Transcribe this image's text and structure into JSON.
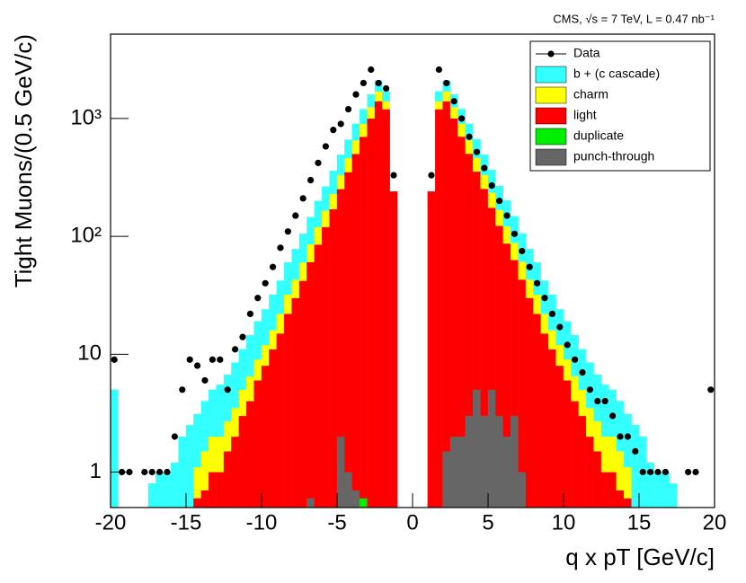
{
  "chart_data": {
    "type": "stacked-histogram",
    "annotation": "CMS,  √s = 7 TeV,  L = 0.47 nb⁻¹",
    "x_label": "q x pT [GeV/c]",
    "y_label": "Tight Muons/(0.5 GeV/c)",
    "log_y": true,
    "legend_position": "top-right",
    "xlim": [
      -20,
      20
    ],
    "ylim": [
      0.5,
      5200
    ],
    "xticks": [
      -20,
      -15,
      -10,
      -5,
      0,
      5,
      10,
      15,
      20
    ],
    "yticks": [
      1,
      10,
      {
        "value": 100,
        "label": "10²"
      },
      {
        "value": 1000,
        "label": "10³"
      }
    ],
    "bins": [
      -20,
      -19.5,
      -19,
      -18.5,
      -18,
      -17.5,
      -17,
      -16.5,
      -16,
      -15.5,
      -15,
      -14.5,
      -14,
      -13.5,
      -13,
      -12.5,
      -12,
      -11.5,
      -11,
      -10.5,
      -10,
      -9.5,
      -9,
      -8.5,
      -8,
      -7.5,
      -7,
      -6.5,
      -6,
      -5.5,
      -5,
      -4.5,
      -4,
      -3.5,
      -3,
      -2.5,
      -2,
      -1.5,
      -1,
      -0.5,
      0,
      0.5,
      1,
      1.5,
      2,
      2.5,
      3,
      3.5,
      4,
      4.5,
      5,
      5.5,
      6,
      6.5,
      7,
      7.5,
      8,
      8.5,
      9,
      9.5,
      10,
      10.5,
      11,
      11.5,
      12,
      12.5,
      13,
      13.5,
      14,
      14.5,
      15,
      15.5,
      16,
      16.5,
      17,
      17.5,
      18,
      18.5,
      19,
      19.5,
      20
    ],
    "data_points": {
      "name": "Data",
      "color": "#000000",
      "values": [
        9,
        1,
        1,
        null,
        1,
        1,
        1,
        1,
        2,
        5,
        9,
        8,
        6,
        9,
        9,
        5,
        11,
        14,
        22,
        30,
        40,
        55,
        80,
        110,
        150,
        210,
        300,
        420,
        580,
        800,
        900,
        1200,
        1600,
        2000,
        2600,
        2000,
        1800,
        330,
        null,
        null,
        null,
        null,
        330,
        2600,
        2000,
        1400,
        1000,
        700,
        520,
        380,
        270,
        200,
        150,
        105,
        75,
        55,
        40,
        30,
        22,
        17,
        12,
        9,
        7,
        5,
        4,
        4,
        3,
        2,
        2,
        1.5,
        1,
        1,
        1,
        1,
        null,
        null,
        1,
        1,
        null,
        5
      ]
    },
    "series": [
      {
        "name": "b + (c cascade)",
        "color": "#33ffff",
        "values": [
          5,
          0.5,
          0.5,
          0.5,
          0.5,
          0.8,
          1,
          1,
          1.2,
          1.5,
          2,
          2,
          2.5,
          3,
          3.5,
          4,
          5,
          6,
          8,
          10,
          12,
          16,
          20,
          28,
          35,
          45,
          60,
          80,
          100,
          130,
          160,
          200,
          250,
          300,
          350,
          400,
          300,
          0,
          0,
          0,
          0,
          0,
          0,
          300,
          400,
          350,
          300,
          250,
          200,
          160,
          130,
          100,
          80,
          60,
          45,
          35,
          28,
          20,
          16,
          12,
          10,
          8,
          6,
          5,
          4,
          3.5,
          3,
          2.5,
          2,
          2,
          1.5,
          1.2,
          1,
          1,
          0.8,
          0.5,
          0.5,
          0.5,
          0.5,
          0
        ]
      },
      {
        "name": "charm",
        "color": "#ffff00",
        "values": [
          0,
          0,
          0,
          0,
          0,
          0,
          0,
          0,
          0,
          0.5,
          0.5,
          0.5,
          0.8,
          1,
          1,
          1.2,
          1.5,
          2,
          2.5,
          3,
          4,
          5,
          7,
          10,
          13,
          18,
          25,
          35,
          45,
          60,
          80,
          110,
          150,
          200,
          250,
          300,
          200,
          0,
          0,
          0,
          0,
          0,
          0,
          200,
          300,
          250,
          200,
          150,
          110,
          80,
          60,
          45,
          35,
          25,
          18,
          13,
          10,
          7,
          5,
          4,
          3,
          2.5,
          2,
          1.5,
          1.2,
          1,
          1,
          0.8,
          0.5,
          0.5,
          0.5,
          0,
          0,
          0,
          0,
          0,
          0,
          0,
          0,
          0
        ]
      },
      {
        "name": "light",
        "color": "#ff0000",
        "values": [
          0,
          0,
          0,
          0,
          0,
          0,
          0,
          0,
          0,
          0,
          0,
          0.6,
          0.7,
          1,
          1,
          1.5,
          2,
          3,
          4,
          6,
          8,
          11,
          15,
          22,
          30,
          42,
          60,
          85,
          120,
          170,
          250,
          350,
          500,
          700,
          1000,
          1400,
          1200,
          240,
          0,
          0,
          0,
          0,
          240,
          1200,
          1400,
          1000,
          700,
          500,
          350,
          250,
          170,
          120,
          85,
          60,
          42,
          30,
          22,
          15,
          11,
          8,
          6,
          4,
          3,
          2,
          1.5,
          1,
          1,
          0.7,
          0.6,
          0,
          0,
          0,
          0,
          0,
          0,
          0,
          0,
          0,
          0,
          0
        ]
      },
      {
        "name": "duplicate",
        "color": "#00ee00",
        "values": [
          0,
          0,
          0,
          0,
          0,
          0,
          0,
          0,
          0,
          0,
          0,
          0,
          0,
          0,
          0,
          0,
          0,
          0,
          0,
          0,
          0,
          0,
          0,
          0,
          0,
          0,
          0,
          0,
          0,
          0,
          0,
          0,
          0,
          0.6,
          0,
          0,
          0,
          0,
          0,
          0,
          0,
          0,
          0,
          0,
          0,
          0,
          0,
          0,
          0,
          0,
          0,
          0,
          0,
          0,
          0,
          0,
          0,
          0,
          0,
          0,
          0,
          0,
          0,
          0,
          0,
          0,
          0,
          0,
          0,
          0,
          0,
          0,
          0,
          0,
          0,
          0,
          0,
          0,
          0,
          0
        ]
      },
      {
        "name": "punch-through",
        "color": "#666666",
        "values": [
          0,
          0,
          0,
          0,
          0,
          0,
          0,
          0,
          0,
          0,
          0,
          0,
          0,
          0,
          0,
          0,
          0,
          0,
          0,
          0,
          0,
          0,
          0,
          0,
          0,
          0,
          0.6,
          0,
          0,
          0,
          2,
          1,
          0.7,
          0,
          0,
          0,
          0,
          0,
          0,
          0,
          0,
          0,
          0,
          0,
          1.5,
          2,
          2,
          3,
          5,
          3,
          5,
          3,
          2,
          3,
          1,
          0,
          0,
          0,
          0,
          0,
          0,
          0,
          0,
          0,
          0,
          0,
          0,
          0,
          0,
          0,
          0,
          0,
          0,
          0,
          0,
          0,
          0,
          0,
          0,
          0
        ]
      }
    ]
  }
}
